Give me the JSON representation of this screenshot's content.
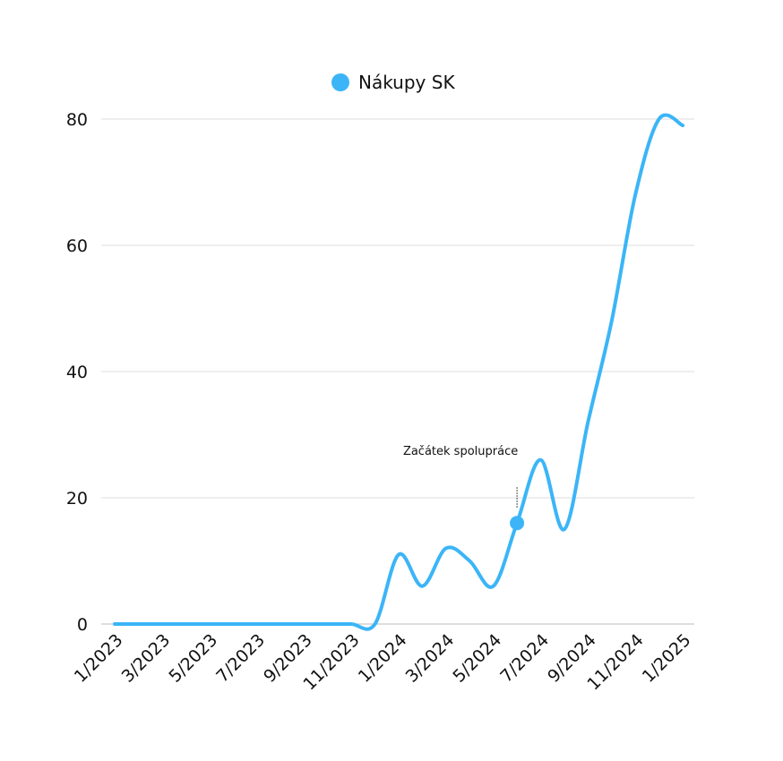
{
  "chart_data": {
    "type": "line",
    "x": [
      "1/2023",
      "2/2023",
      "3/2023",
      "4/2023",
      "5/2023",
      "6/2023",
      "7/2023",
      "8/2023",
      "9/2023",
      "10/2023",
      "11/2023",
      "12/2023",
      "1/2024",
      "2/2024",
      "3/2024",
      "4/2024",
      "5/2024",
      "6/2024",
      "7/2024",
      "8/2024",
      "9/2024",
      "10/2024",
      "11/2024",
      "12/2024",
      "1/2025"
    ],
    "x_tick_labels": [
      "1/2023",
      "3/2023",
      "5/2023",
      "7/2023",
      "9/2023",
      "11/2023",
      "1/2024",
      "3/2024",
      "5/2024",
      "7/2024",
      "9/2024",
      "11/2024",
      "1/2025"
    ],
    "series": [
      {
        "name": "Nákupy SK",
        "color": "#3BB5F7",
        "values": [
          0,
          0,
          0,
          0,
          0,
          0,
          0,
          0,
          0,
          0,
          0,
          0,
          11,
          6,
          12,
          10,
          6,
          16,
          26,
          15,
          32,
          48,
          68,
          80,
          79
        ]
      }
    ],
    "ylim": [
      0,
      80
    ],
    "yticks": [
      0,
      20,
      40,
      60,
      80
    ],
    "grid": true,
    "legend_placement": "top-center",
    "annotations": [
      {
        "text": "Začátek spolupráce",
        "x": "6/2024",
        "y": 16
      }
    ],
    "title": "",
    "xlabel": "",
    "ylabel": ""
  }
}
